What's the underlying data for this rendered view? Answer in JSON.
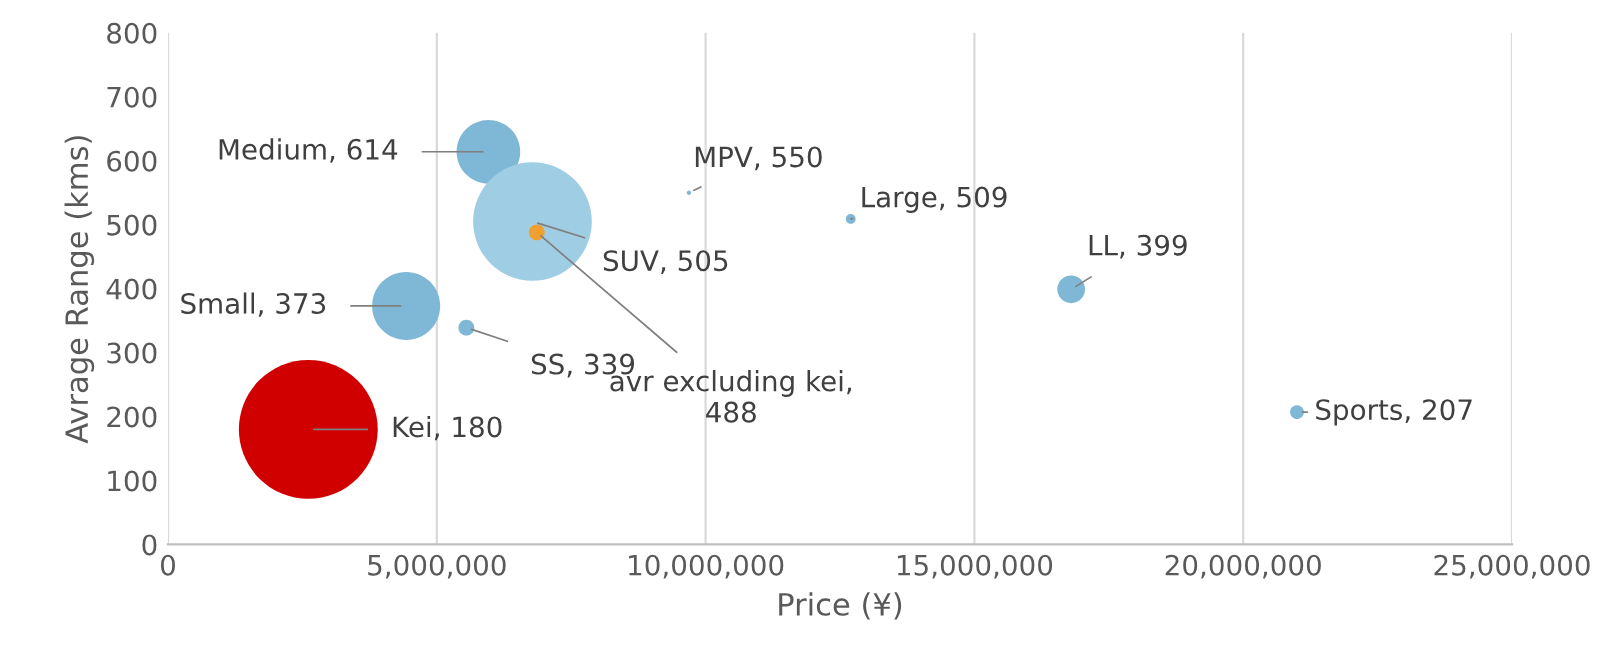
{
  "chart_data": {
    "type": "bubble",
    "xlabel": "Price (¥)",
    "ylabel": "Avrage Range (kms)",
    "x": [
      2610000,
      4430000,
      5960000,
      6780000,
      6860000,
      5550000,
      9690000,
      12700000,
      16800000,
      21000000
    ],
    "values": [
      180,
      373,
      614,
      505,
      488,
      339,
      550,
      509,
      399,
      207
    ],
    "sizes": [
      1,
      0.24,
      0.21,
      0.73,
      0.013,
      0.013,
      0.001,
      0.005,
      0.04,
      0.01
    ],
    "colors": [
      "#d00000",
      "#7fb8d6",
      "#7fb8d6",
      "#9fcde4",
      "#f0a030",
      "#7fb8d6",
      "#7fb8d6",
      "#7fb8d6",
      "#7fb8d6",
      "#7fb8d6"
    ],
    "xlim": [
      0,
      25000000
    ],
    "xticks": [
      {
        "value": 0,
        "label": "0"
      },
      {
        "value": 5000000,
        "label": "5,000,000"
      },
      {
        "value": 10000000,
        "label": "10,000,000"
      },
      {
        "value": 15000000,
        "label": "15,000,000"
      },
      {
        "value": 20000000,
        "label": "20,000,000"
      },
      {
        "value": 25000000,
        "label": "25,000,000"
      }
    ],
    "ylim": [
      0,
      800
    ],
    "yticks": [
      0,
      100,
      200,
      300,
      400,
      500,
      600,
      700,
      800
    ],
    "grid": "x",
    "annotations": [
      {
        "text": "Kei, 180",
        "x": 2610000,
        "y": 180
      },
      {
        "text": "Small, 373",
        "x": 4430000,
        "y": 373
      },
      {
        "text": "Medium, 614",
        "x": 5960000,
        "y": 614
      },
      {
        "text": "SUV, 505",
        "x": 6780000,
        "y": 505
      },
      {
        "text": "avr excluding kei,\n488",
        "x": 6860000,
        "y": 488
      },
      {
        "text": "SS, 339",
        "x": 5550000,
        "y": 339
      },
      {
        "text": "MPV, 550",
        "x": 9690000,
        "y": 550
      },
      {
        "text": "Large, 509",
        "x": 12700000,
        "y": 509
      },
      {
        "text": "LL, 399",
        "x": 16800000,
        "y": 399
      },
      {
        "text": "Sports, 207",
        "x": 21000000,
        "y": 207
      }
    ]
  }
}
